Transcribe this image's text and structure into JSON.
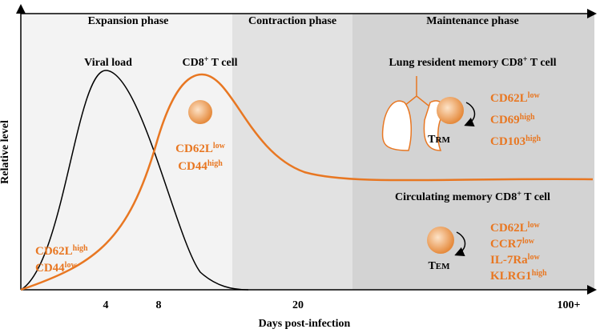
{
  "axes": {
    "y_label": "Relative level",
    "x_label": "Days post-infection",
    "x_ticks": [
      "4",
      "8",
      "20",
      "100+"
    ]
  },
  "phases": [
    "Expansion phase",
    "Contraction phase",
    "Maintenance phase"
  ],
  "viral_label": "Viral load",
  "cd8_label": [
    {
      "text": "CD8",
      "sup": "+"
    },
    {
      "text": " T cell"
    }
  ],
  "naive_markers": [
    [
      {
        "text": "CD62L",
        "sup": "high"
      }
    ],
    [
      {
        "text": "CD44",
        "sup": "low"
      }
    ]
  ],
  "effector_markers": [
    [
      {
        "text": "CD62L",
        "sup": "low"
      }
    ],
    [
      {
        "text": "CD44",
        "sup": "high"
      }
    ]
  ],
  "lung": {
    "title": [
      {
        "text": "Lung resident memory CD8",
        "sup": "+"
      },
      {
        "text": " T cell"
      }
    ],
    "cell": [
      {
        "text": "T"
      },
      {
        "small": "RM"
      }
    ],
    "markers": [
      [
        {
          "text": "CD62L",
          "sup": "low"
        }
      ],
      [
        {
          "text": "CD69",
          "sup": "high"
        }
      ],
      [
        {
          "text": "CD103",
          "sup": "high"
        }
      ]
    ]
  },
  "circulating": {
    "title": [
      {
        "text": "Circulating memory CD8",
        "sup": "+"
      },
      {
        "text": " T cell"
      }
    ],
    "cell": [
      {
        "text": "T"
      },
      {
        "small": "EM"
      }
    ],
    "markers": [
      [
        {
          "text": "CD62L",
          "sup": "low"
        }
      ],
      [
        {
          "text": "CCR7",
          "sup": "low"
        }
      ],
      [
        {
          "text": "IL-7Ra",
          "sup": "low"
        }
      ],
      [
        {
          "text": "KLRG1",
          "sup": "high"
        }
      ]
    ]
  }
}
